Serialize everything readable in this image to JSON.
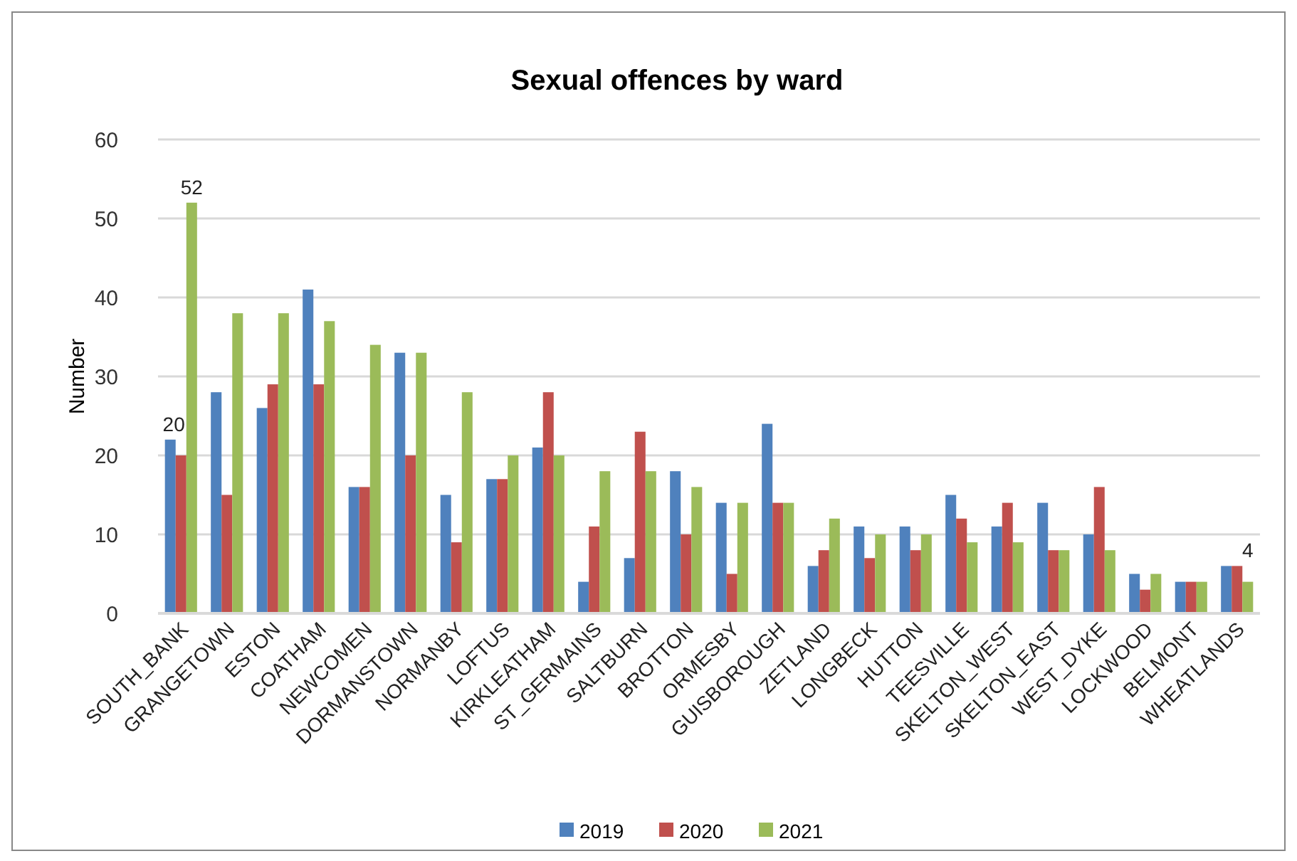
{
  "chart_data": {
    "type": "bar",
    "title": "Sexual offences by ward",
    "ylabel": "Number",
    "categories": [
      "SOUTH_BANK",
      "GRANGETOWN",
      "ESTON",
      "COATHAM",
      "NEWCOMEN",
      "DORMANSTOWN",
      "NORMANBY",
      "LOFTUS",
      "KIRKLEATHAM",
      "ST_GERMAINS",
      "SALTBURN",
      "BROTTON",
      "ORMESBY",
      "GUISBOROUGH",
      "ZETLAND",
      "LONGBECK",
      "HUTTON",
      "TEESVILLE",
      "SKELTON_WEST",
      "SKELTON_EAST",
      "WEST_DYKE",
      "LOCKWOOD",
      "BELMONT",
      "WHEATLANDS"
    ],
    "series": [
      {
        "name": "2019",
        "color": "#4f81bd",
        "values": [
          22,
          28,
          26,
          41,
          16,
          33,
          15,
          17,
          21,
          4,
          7,
          18,
          14,
          24,
          6,
          11,
          11,
          15,
          11,
          14,
          10,
          5,
          4,
          6
        ]
      },
      {
        "name": "2020",
        "color": "#c0504d",
        "values": [
          20,
          15,
          29,
          29,
          16,
          20,
          9,
          17,
          28,
          11,
          23,
          10,
          5,
          14,
          8,
          7,
          8,
          12,
          14,
          8,
          16,
          3,
          4,
          6
        ],
        "value_labels": [
          "20",
          null,
          null,
          null,
          null,
          null,
          null,
          null,
          null,
          null,
          null,
          null,
          null,
          null,
          null,
          null,
          null,
          null,
          null,
          null,
          null,
          null,
          null,
          null
        ]
      },
      {
        "name": "2021",
        "color": "#9bbb59",
        "values": [
          52,
          38,
          38,
          37,
          34,
          33,
          28,
          20,
          20,
          18,
          18,
          16,
          14,
          14,
          12,
          10,
          10,
          9,
          9,
          8,
          8,
          5,
          4,
          4
        ],
        "value_labels": [
          "52",
          null,
          null,
          null,
          null,
          null,
          null,
          null,
          null,
          null,
          null,
          null,
          null,
          null,
          null,
          null,
          null,
          null,
          null,
          null,
          null,
          null,
          null,
          "4"
        ]
      }
    ],
    "ylim": [
      0,
      60
    ],
    "yticks": [
      0,
      10,
      20,
      30,
      40,
      50,
      60
    ],
    "grid": "y",
    "legend": "bottom"
  }
}
